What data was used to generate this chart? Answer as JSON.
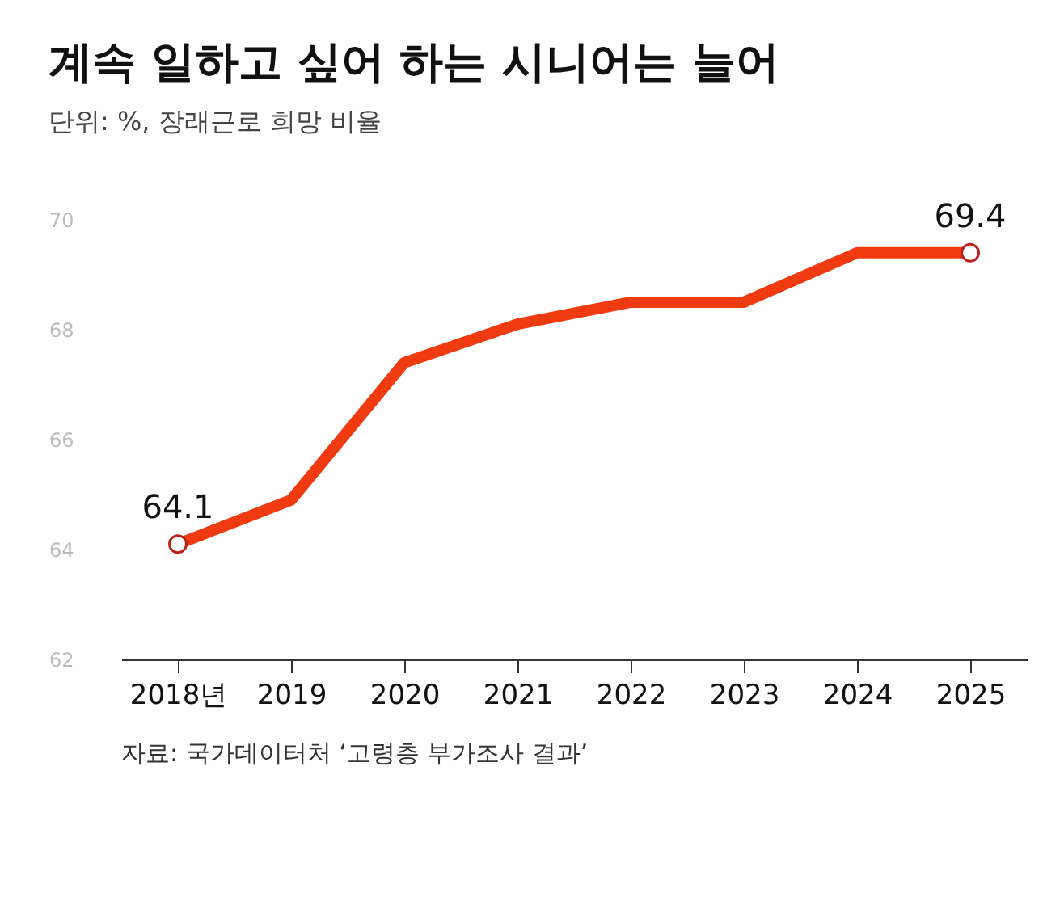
{
  "chart_data": {
    "type": "line",
    "title": "계속 일하고 싶어 하는 시니어는 늘어",
    "subtitle": "단위: %, 장래근로 희망 비율",
    "categories": [
      "2018년",
      "2019",
      "2020",
      "2021",
      "2022",
      "2023",
      "2024",
      "2025"
    ],
    "series": [
      {
        "color": "#f03a10",
        "values": [
          64.1,
          64.9,
          67.4,
          68.1,
          68.5,
          68.5,
          69.4,
          69.4
        ],
        "value_labels": [
          "64.1",
          null,
          null,
          null,
          null,
          null,
          null,
          "69.4"
        ]
      }
    ],
    "ylim": [
      62,
      70
    ],
    "yticks": [
      62,
      64,
      66,
      68,
      70
    ],
    "grid": false,
    "annotations": [
      "자료: 국가데이터처 ‘고령층 부가조사 결과’"
    ]
  }
}
